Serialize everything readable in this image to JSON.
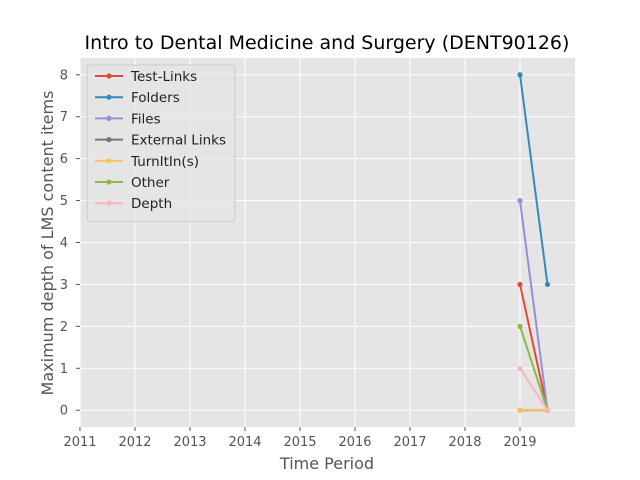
{
  "chart_data": {
    "type": "line",
    "title": "Intro to Dental Medicine and Surgery (DENT90126)",
    "xlabel": "Time Period",
    "ylabel": "Maximum depth of LMS content items",
    "xlim": [
      2011,
      2020.0
    ],
    "ylim": [
      -0.4,
      8.4
    ],
    "xticks": [
      2011,
      2012,
      2013,
      2014,
      2015,
      2016,
      2017,
      2018,
      2019
    ],
    "yticks": [
      0,
      1,
      2,
      3,
      4,
      5,
      6,
      7,
      8
    ],
    "grid": true,
    "legend_position": "upper-left",
    "x": [
      2019.0,
      2019.5
    ],
    "series": [
      {
        "name": "Test-Links",
        "color": "#E24A33",
        "values": [
          3,
          0
        ]
      },
      {
        "name": "Folders",
        "color": "#348ABD",
        "values": [
          8,
          3
        ]
      },
      {
        "name": "Files",
        "color": "#988ED5",
        "values": [
          5,
          0
        ]
      },
      {
        "name": "External Links",
        "color": "#777777",
        "values": [
          0,
          0
        ]
      },
      {
        "name": "TurnItIn(s)",
        "color": "#FBC15E",
        "values": [
          0,
          0
        ]
      },
      {
        "name": "Other",
        "color": "#8EBA42",
        "values": [
          2,
          0
        ]
      },
      {
        "name": "Depth",
        "color": "#FFB5B8",
        "values": [
          1,
          0
        ]
      }
    ]
  }
}
